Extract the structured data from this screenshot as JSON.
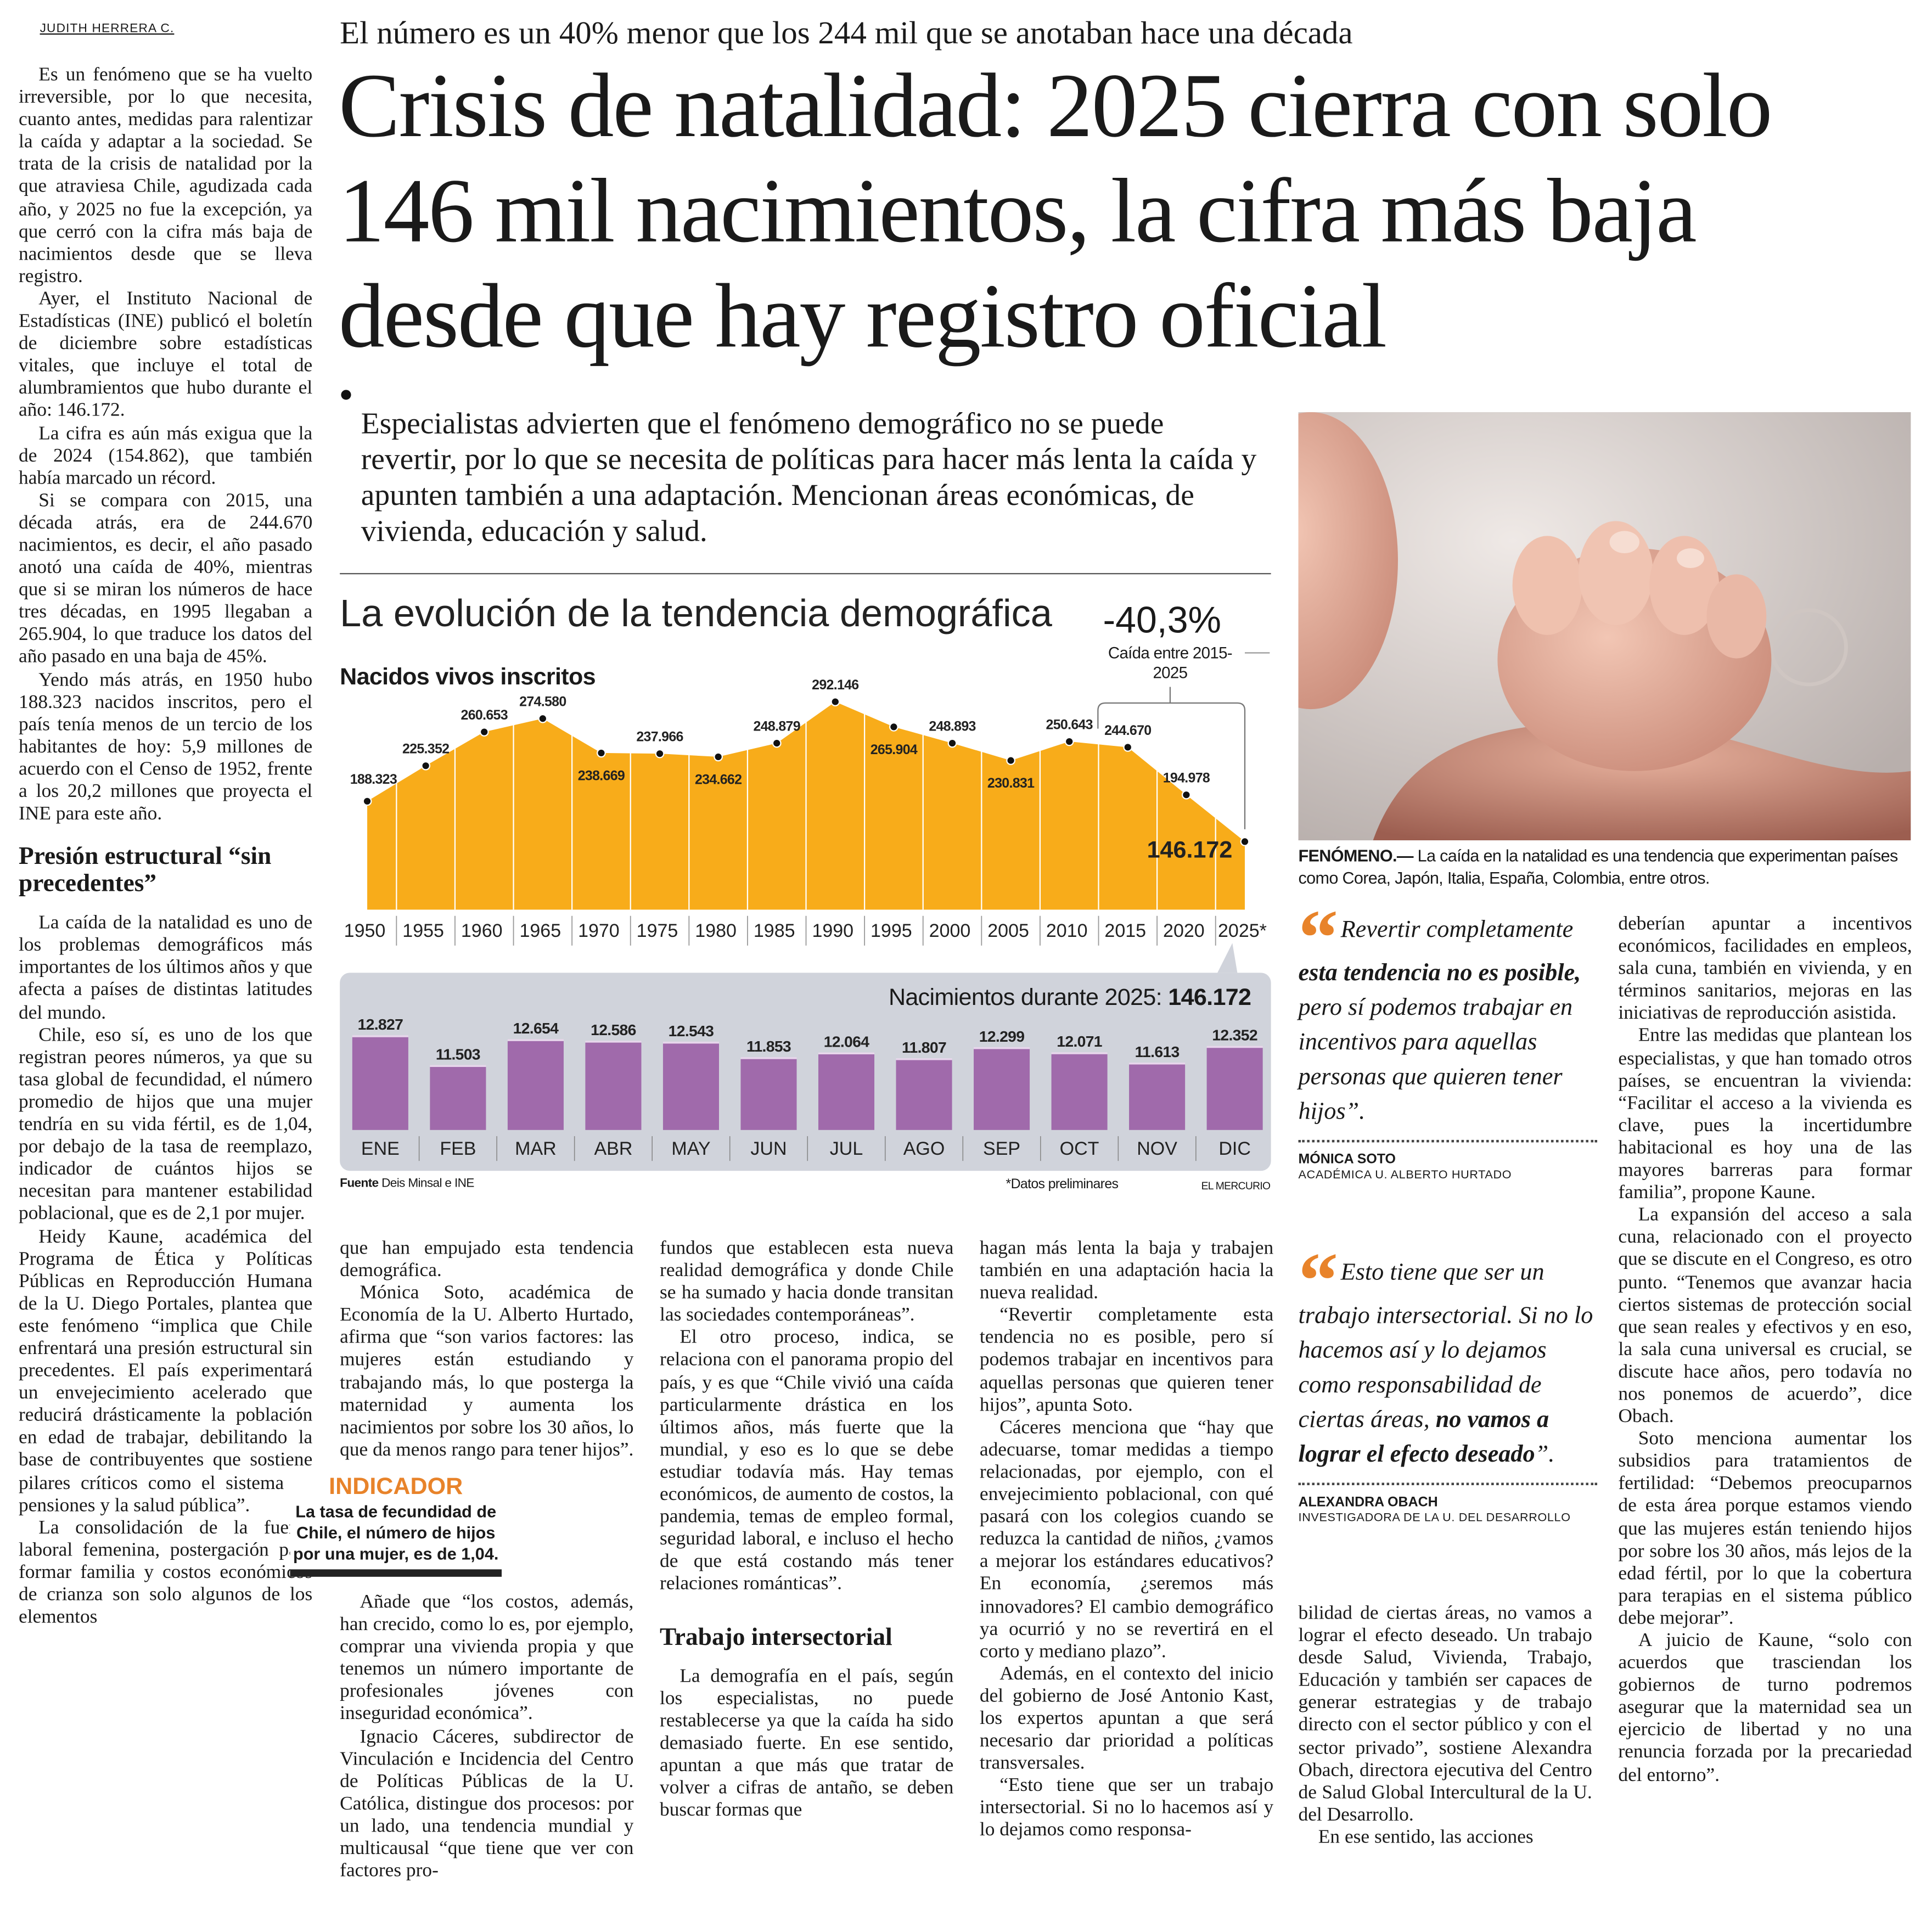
{
  "byline": "JUDITH HERRERA C.",
  "kicker": "El número es un 40% menor que los 244 mil que se anotaban hace una década",
  "headline": "Crisis de natalidad: 2025 cierra con solo 146 mil nacimientos, la cifra más baja desde que hay registro oficial",
  "deck": "Especialistas advierten que el fenómeno demográfico no se puede revertir, por lo que se necesita de políticas para hacer más lenta la caída y apunten también a una adaptación. Mencionan áreas económicas, de vivienda, educación y salud.",
  "infographic": {
    "title": "La evolución de la tendencia demográfica",
    "change": "-40,3%",
    "change_label": "Caída entre 2015-2025",
    "source_label": "Fuente",
    "source": "Deis Minsal e INE",
    "note": "*Datos preliminares",
    "brand": "EL MERCURIO"
  },
  "chart_data": [
    {
      "type": "area",
      "title": "Nacidos vivos inscritos",
      "categories": [
        "1950",
        "1955",
        "1960",
        "1965",
        "1970",
        "1975",
        "1980",
        "1985",
        "1990",
        "1995",
        "2000",
        "2005",
        "2010",
        "2015",
        "2020",
        "2025*"
      ],
      "values": [
        188323,
        225352,
        260653,
        274580,
        238669,
        237966,
        234662,
        248879,
        292146,
        265904,
        248893,
        230831,
        250643,
        244670,
        194978,
        146172
      ],
      "labels": [
        "188.323",
        "225.352",
        "260.653",
        "274.580",
        "238.669",
        "237.966",
        "234.662",
        "248.879",
        "292.146",
        "265.904",
        "248.893",
        "230.831",
        "250.643",
        "244.670",
        "194.978",
        "146.172"
      ],
      "ylim": [
        75000,
        300000
      ],
      "color": "#f8ac1a",
      "grid": false
    },
    {
      "type": "bar",
      "title": "Nacimientos durante 2025:",
      "total": "146.172",
      "categories": [
        "ENE",
        "FEB",
        "MAR",
        "ABR",
        "MAY",
        "JUN",
        "JUL",
        "AGO",
        "SEP",
        "OCT",
        "NOV",
        "DIC"
      ],
      "values": [
        12827,
        11503,
        12654,
        12586,
        12543,
        11853,
        12064,
        11807,
        12299,
        12071,
        11613,
        12352
      ],
      "labels": [
        "12.827",
        "11.503",
        "12.654",
        "12.586",
        "12.543",
        "11.853",
        "12.064",
        "11.807",
        "12.299",
        "12.071",
        "11.613",
        "12.352"
      ],
      "ylim": [
        8700,
        13000
      ],
      "color": "#a06aab",
      "grid": false
    }
  ],
  "photo": {
    "caption_lead": "FENÓMENO.—",
    "caption": " La caída en la natalidad es una tendencia que experimentan países como Corea, Japón, Italia, España, Colombia, entre otros."
  },
  "columns": {
    "c1": {
      "p": [
        "Es un fenómeno que se ha vuelto irreversible, por lo que necesita, cuanto antes, medidas para ralentizar la caída y adaptar a la sociedad. Se trata de la crisis de natalidad por la que atraviesa Chile, agudizada cada año, y 2025 no fue la excepción, ya que cerró con la cifra más baja de nacimientos desde que se lleva registro.",
        "Ayer, el Instituto Nacional de Estadísticas (INE) publicó el boletín de diciembre sobre estadísticas vitales, que incluye el total de alumbramientos que hubo durante el año: 146.172.",
        "La cifra es aún más exigua que la de 2024 (154.862), que también había marcado un récord.",
        "Si se compara con 2015, una década atrás, era de 244.670 nacimientos, es decir, el año pasado anotó una caída de 40%, mientras que si se miran los números de hace tres décadas, en 1995 llegaban a 265.904, lo que traduce los datos del año pasado en una baja de 45%.",
        "Yendo más atrás, en 1950 hubo 188.323 nacidos inscritos, pero el país tenía menos de un tercio de los habitantes de hoy: 5,9 millones de acuerdo con el Censo de 1952, frente a los 20,2 millones que proyecta el INE para este año."
      ],
      "subhead": "Presión estructural “sin precedentes”",
      "p2": [
        "La caída de la natalidad es uno de los problemas demográficos más importantes de los últimos años y que afecta a países de distintas latitudes del mundo.",
        "Chile, eso sí, es uno de los que registran peores números, ya que su tasa global de fecundidad, el número promedio de hijos que una mujer tendría en su vida fértil, es de 1,04, por debajo de la tasa de reemplazo, indicador de cuántos hijos se necesitan para mantener estabilidad poblacional, que es de 2,1 por mujer.",
        "Heidy Kaune, académica del Programa de Ética y Políticas Públicas en Reproducción Humana de la U. Diego Portales, plantea que este fenómeno “implica que Chile enfrentará una presión estructural sin precedentes. El país experimentará un envejecimiento acelerado que reducirá drásticamente la población en edad de trabajar, debilitando la base de contribuyentes que sostiene pilares críticos como el sistema de pensiones y la salud pública”.",
        "La consolidación de la fuerza laboral femenina, postergación para formar familia y costos económicos de crianza son solo algunos de los elementos"
      ]
    },
    "c2": {
      "p": [
        "que han empujado esta tendencia demográfica.",
        "Mónica Soto, académica de Economía de la U. Alberto Hurtado, afirma que “son varios factores: las mujeres están estudiando y trabajando más, lo que posterga la maternidad y aumenta los nacimientos por sobre los 30 años, lo que da menos rango para tener hijos”.",
        "Añade que “los costos, además, han crecido, como lo es, por ejemplo, comprar una vivienda propia y que tenemos un número importante de profesionales jóvenes con inseguridad económica”.",
        "Ignacio Cáceres, subdirector de Vinculación e Incidencia del Centro de Políticas Públicas de la U. Católica, distingue dos procesos: por un lado, una tendencia mundial y multicausal “que tiene que ver con factores pro-"
      ],
      "indicator_title": "INDICADOR",
      "indicator_text": "La tasa de fecundidad de Chile, el número de hijos por una mujer, es de 1,04."
    },
    "c3": {
      "p": [
        "fundos que establecen esta nueva realidad demográfica y donde Chile se ha sumado y hacia donde transitan las sociedades contemporáneas”.",
        "El otro proceso, indica, se relaciona con el panorama propio del país, y es que “Chile vivió una caída particularmente drástica en los últimos años, más fuerte que la mundial, y eso es lo que se debe estudiar todavía más. Hay temas económicos, de aumento de costos, la pandemia, temas de empleo formal, seguridad laboral, e incluso el hecho de que está costando más tener relaciones románticas”."
      ],
      "subhead": "Trabajo intersectorial",
      "p2": [
        "La demografía en el país, según los especialistas, no puede restablecerse ya que la caída ha sido demasiado fuerte. En ese sentido, apuntan a que más que tratar de volver a cifras de antaño, se deben buscar formas que"
      ]
    },
    "c4": {
      "p": [
        "hagan más lenta la baja y trabajen también en una adaptación hacia la nueva realidad.",
        "“Revertir completamente esta tendencia no es posible, pero sí podemos trabajar en incentivos para aquellas personas que quieren tener hijos”, apunta Soto.",
        "Cáceres menciona que “hay que adecuarse, tomar medidas a tiempo relacionadas, por ejemplo, con el envejecimiento poblacional, con qué pasará con los colegios cuando se reduzca la cantidad de niños, ¿vamos a mejorar los estándares educativos? En economía, ¿seremos más innovadores? El cambio demográfico ya ocurrió y no se revertirá en el corto y mediano plazo”.",
        "Además, en el contexto del inicio del gobierno de José Antonio Kast, los expertos apuntan a que será necesario dar prioridad a políticas transversales.",
        "“Esto tiene que ser un trabajo intersectorial. Si no lo hacemos así y lo dejamos como responsa-"
      ]
    },
    "c5": {
      "p": [
        "bilidad de ciertas áreas, no vamos a lograr el efecto deseado. Un trabajo desde Salud, Vivienda, Trabajo, Educación y también ser capaces de generar estrategias y de trabajo directo con el sector público y con el sector privado”, sostiene Alexandra Obach, directora ejecutiva del Centro de Salud Global Intercultural de la U. del Desarrollo.",
        "En ese sentido, las acciones"
      ]
    },
    "c6": {
      "p": [
        "deberían apuntar a incentivos económicos, facilidades en empleos, sala cuna, también en vivienda, y en términos sanitarios, mejoras en las iniciativas de reproducción asistida.",
        "Entre las medidas que plantean los especialistas, y que han tomado otros países, se encuentran la vivienda: “Facilitar el acceso a la vivienda es clave, pues la incertidumbre habitacional es hoy una de las mayores barreras para formar familia”, propone Kaune.",
        "La expansión del acceso a sala cuna, relacionado con el proyecto que se discute en el Congreso, es otro punto. “Tenemos que avanzar hacia ciertos sistemas de protección social que sean reales y efectivos y en eso, la sala cuna universal es crucial, se discute hace años, pero todavía no nos ponemos de acuerdo”, dice Obach.",
        "Soto menciona aumentar los subsidios para tratamientos de fertilidad: “Debemos preocuparnos de esta área porque estamos viendo que las mujeres están teniendo hijos por sobre los 30 años, más lejos de la edad fértil, por lo que la cobertura para terapias en el sistema público debe mejorar”.",
        "A juicio de Kaune, “solo con acuerdos que trasciendan los gobiernos de turno podremos asegurar que la maternidad sea un ejercicio de libertad y no una renuncia forzada por la precariedad del entorno”."
      ]
    }
  },
  "quotes": [
    {
      "a": "Revertir completamente ",
      "b": "esta tendencia no es posible,",
      "c": " pero sí podemos trabajar en incentivos para aquellas personas que quieren tener hijos”.",
      "name": "MÓNICA SOTO",
      "role": "ACADÉMICA U. ALBERTO HURTADO"
    },
    {
      "a": "Esto tiene que ser un trabajo intersectorial. Si no lo hacemos así y lo dejamos como responsabilidad de ciertas áreas, ",
      "b": "no vamos a lograr el efecto deseado",
      "c": "”.",
      "name": "ALEXANDRA OBACH",
      "role": "INVESTIGADORA DE LA U. DEL DESARROLLO"
    }
  ],
  "icons": {
    "quote": "opening-quote-mark-icon",
    "bullet": "bullet-dot-icon"
  },
  "colors": {
    "accent": "#e8832a",
    "area": "#f8ac1a",
    "bars": "#a06aab",
    "panel": "#d0d3db"
  }
}
